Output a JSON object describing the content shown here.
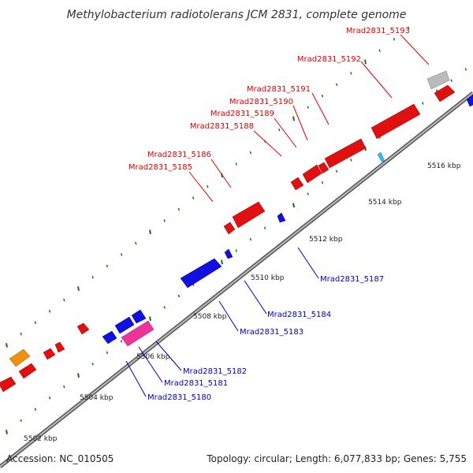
{
  "title": "Methylobacterium radiotolerans JCM 2831, complete genome",
  "footer": {
    "accession": "Accession: NC_010505",
    "summary": "Topology: circular; Length: 6,077,833 bp; Genes: 5,755"
  },
  "colors": {
    "forward": "#ee1111",
    "reverse": "#1111dd",
    "label_forward": "#dd0000",
    "label_reverse": "#0000bb",
    "tick": "#117711",
    "backbone": "#888888",
    "orange": "#f09010",
    "pink": "#ee3399",
    "gray": "#bbbbbb",
    "cyan": "#33bbee"
  },
  "kbp_ticks": [
    "5502 kbp",
    "5504 kbp",
    "5506 kbp",
    "5508 kbp",
    "5510 kbp",
    "5512 kbp",
    "5514 kbp",
    "5516 kbp"
  ],
  "gene_labels": {
    "forward": [
      "Mrad2831_5193",
      "Mrad2831_5192",
      "Mrad2831_5191",
      "Mrad2831_5190",
      "Mrad2831_5189",
      "Mrad2831_5188",
      "Mrad2831_5186",
      "Mrad2831_5185"
    ],
    "reverse": [
      "Mrad2831_5187",
      "Mrad2831_5184",
      "Mrad2831_5183",
      "Mrad2831_5182",
      "Mrad2831_5181",
      "Mrad2831_5180"
    ]
  }
}
